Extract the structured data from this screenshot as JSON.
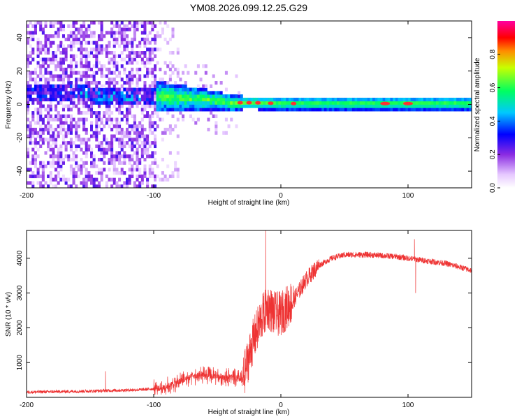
{
  "title": "YM08.2026.099.12.25.G29",
  "chart_data": [
    {
      "type": "heatmap",
      "xlabel": "Height of straight line (km)",
      "ylabel": "Frequency (Hz)",
      "xlim": [
        -200,
        150
      ],
      "ylim": [
        -50,
        50
      ],
      "xticks": [
        -200,
        -100,
        0,
        100
      ],
      "xtick_labels": [
        "-200",
        "-100",
        "0",
        "100"
      ],
      "yticks": [
        -40,
        -20,
        0,
        20,
        40
      ],
      "ytick_labels": [
        "-40",
        "-20",
        "0",
        "20",
        "40"
      ],
      "colorbar": {
        "label": "Normalized spectral amplitude",
        "range": [
          0,
          1
        ],
        "ticks": [
          0.0,
          0.2,
          0.4,
          0.6,
          0.8
        ],
        "tick_labels": [
          "0.0",
          "0.2",
          "0.4",
          "0.6",
          "0.8"
        ],
        "stops": [
          {
            "v": 0.0,
            "c": "#ffffff"
          },
          {
            "v": 0.08,
            "c": "#e6c8ff"
          },
          {
            "v": 0.2,
            "c": "#8a2be2"
          },
          {
            "v": 0.32,
            "c": "#0000ff"
          },
          {
            "v": 0.45,
            "c": "#00c8ff"
          },
          {
            "v": 0.58,
            "c": "#00ff60"
          },
          {
            "v": 0.72,
            "c": "#c8ff00"
          },
          {
            "v": 0.82,
            "c": "#ff8c00"
          },
          {
            "v": 0.9,
            "c": "#ff0000"
          },
          {
            "v": 1.0,
            "c": "#ff00a0"
          }
        ]
      },
      "band_center_hz": [
        [
          -150,
          6
        ],
        [
          -100,
          5
        ],
        [
          -80,
          4
        ],
        [
          -60,
          3
        ],
        [
          -40,
          1
        ],
        [
          -20,
          1
        ],
        [
          0,
          0.5
        ],
        [
          50,
          0.5
        ],
        [
          150,
          0.5
        ]
      ]
    },
    {
      "type": "line",
      "xlabel": "Height of straight line (km)",
      "ylabel": "SNR (10 * v/v)",
      "xlim": [
        -200,
        150
      ],
      "ylim": [
        0,
        4800
      ],
      "xticks": [
        -200,
        -100,
        0,
        100
      ],
      "xtick_labels": [
        "-200",
        "-100",
        "0",
        "100"
      ],
      "yticks": [
        1000,
        2000,
        3000,
        4000
      ],
      "ytick_labels": [
        "1000",
        "2000",
        "3000",
        "4000"
      ],
      "color": "#ee3333",
      "trend": {
        "x": [
          -200,
          -150,
          -110,
          -95,
          -85,
          -70,
          -55,
          -40,
          -30,
          -22,
          -15,
          -10,
          -5,
          0,
          10,
          20,
          30,
          40,
          50,
          70,
          90,
          110,
          130,
          150
        ],
        "y": [
          150,
          180,
          220,
          260,
          380,
          600,
          620,
          580,
          500,
          1600,
          2300,
          2600,
          2400,
          2400,
          2800,
          3400,
          3800,
          4000,
          4100,
          4100,
          4050,
          3950,
          3850,
          3650
        ]
      },
      "spikes": [
        {
          "x": -138,
          "y": 750
        },
        {
          "x": -12,
          "y": 4800
        },
        {
          "x": 105,
          "y": 4550
        },
        {
          "x": 106,
          "y": 3000
        }
      ]
    }
  ]
}
